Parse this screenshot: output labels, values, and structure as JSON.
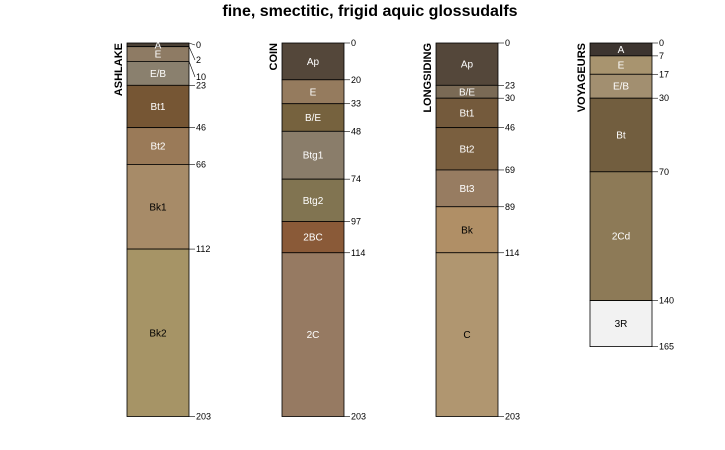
{
  "title": "fine, smectitic, frigid aquic glossudalfs",
  "profiles": [
    {
      "name": "ASHLAKE",
      "max_depth": 203,
      "horizons": [
        {
          "name": "A",
          "top": 0,
          "bottom": 2,
          "color": "#4a4035",
          "text_color": "#ffffff"
        },
        {
          "name": "E",
          "top": 2,
          "bottom": 10,
          "color": "#8e7b64",
          "text_color": "#ffffff"
        },
        {
          "name": "E/B",
          "top": 10,
          "bottom": 23,
          "color": "#8a806e",
          "text_color": "#ffffff"
        },
        {
          "name": "Bt1",
          "top": 23,
          "bottom": 46,
          "color": "#765634",
          "text_color": "#ffffff"
        },
        {
          "name": "Bt2",
          "top": 46,
          "bottom": 66,
          "color": "#9a7a58",
          "text_color": "#ffffff"
        },
        {
          "name": "Bk1",
          "top": 66,
          "bottom": 112,
          "color": "#a78b68",
          "text_color": "#000000"
        },
        {
          "name": "Bk2",
          "top": 112,
          "bottom": 203,
          "color": "#a69466",
          "text_color": "#000000"
        }
      ],
      "depth_labels": [
        "0",
        "2",
        "10",
        "23",
        "46",
        "66",
        "112",
        "203"
      ]
    },
    {
      "name": "COIN",
      "max_depth": 203,
      "horizons": [
        {
          "name": "Ap",
          "top": 0,
          "bottom": 20,
          "color": "#54473a",
          "text_color": "#ffffff"
        },
        {
          "name": "E",
          "top": 20,
          "bottom": 33,
          "color": "#957b5e",
          "text_color": "#ffffff"
        },
        {
          "name": "B/E",
          "top": 33,
          "bottom": 48,
          "color": "#76623e",
          "text_color": "#ffffff"
        },
        {
          "name": "Btg1",
          "top": 48,
          "bottom": 74,
          "color": "#8a7d6a",
          "text_color": "#ffffff"
        },
        {
          "name": "Btg2",
          "top": 74,
          "bottom": 97,
          "color": "#817451",
          "text_color": "#ffffff"
        },
        {
          "name": "2BC",
          "top": 97,
          "bottom": 114,
          "color": "#8a5a38",
          "text_color": "#ffffff"
        },
        {
          "name": "2C",
          "top": 114,
          "bottom": 203,
          "color": "#967a62",
          "text_color": "#ffffff"
        }
      ],
      "depth_labels": [
        "0",
        "20",
        "33",
        "48",
        "74",
        "97",
        "114",
        "203"
      ]
    },
    {
      "name": "LONGSIDING",
      "max_depth": 203,
      "horizons": [
        {
          "name": "Ap",
          "top": 0,
          "bottom": 23,
          "color": "#54473a",
          "text_color": "#ffffff"
        },
        {
          "name": "B/E",
          "top": 23,
          "bottom": 30,
          "color": "#7a6a55",
          "text_color": "#ffffff"
        },
        {
          "name": "Bt1",
          "top": 30,
          "bottom": 46,
          "color": "#745a3c",
          "text_color": "#ffffff"
        },
        {
          "name": "Bt2",
          "top": 46,
          "bottom": 69,
          "color": "#7a5f3f",
          "text_color": "#ffffff"
        },
        {
          "name": "Bt3",
          "top": 69,
          "bottom": 89,
          "color": "#977c61",
          "text_color": "#ffffff"
        },
        {
          "name": "Bk",
          "top": 89,
          "bottom": 114,
          "color": "#b08f66",
          "text_color": "#000000"
        },
        {
          "name": "C",
          "top": 114,
          "bottom": 203,
          "color": "#b09670",
          "text_color": "#000000"
        }
      ],
      "depth_labels": [
        "0",
        "23",
        "30",
        "46",
        "69",
        "89",
        "114",
        "203"
      ]
    },
    {
      "name": "VOYAGEURS",
      "max_depth": 165,
      "horizons": [
        {
          "name": "A",
          "top": 0,
          "bottom": 7,
          "color": "#3d3530",
          "text_color": "#ffffff"
        },
        {
          "name": "E",
          "top": 7,
          "bottom": 17,
          "color": "#a8946f",
          "text_color": "#ffffff"
        },
        {
          "name": "E/B",
          "top": 17,
          "bottom": 30,
          "color": "#a28f70",
          "text_color": "#ffffff"
        },
        {
          "name": "Bt",
          "top": 30,
          "bottom": 70,
          "color": "#725e3f",
          "text_color": "#ffffff"
        },
        {
          "name": "2Cd",
          "top": 70,
          "bottom": 140,
          "color": "#8d7a57",
          "text_color": "#ffffff"
        },
        {
          "name": "3R",
          "top": 140,
          "bottom": 165,
          "color": "#f2f2f2",
          "text_color": "#000000"
        }
      ],
      "depth_labels": [
        "0",
        "7",
        "17",
        "30",
        "70",
        "140",
        "165"
      ]
    }
  ]
}
